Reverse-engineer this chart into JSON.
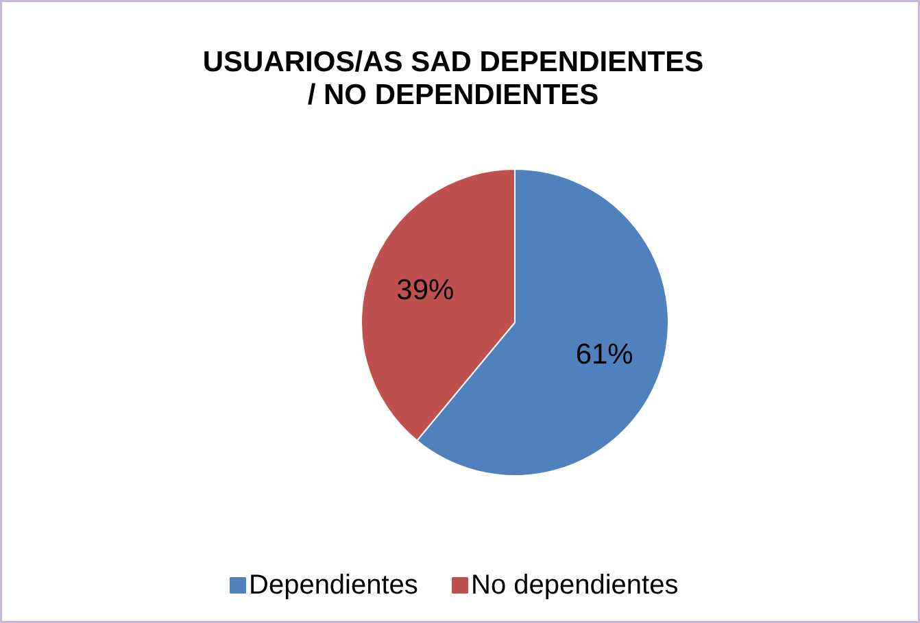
{
  "chart_data": {
    "type": "pie",
    "title": "USUARIOS/AS SAD DEPENDIENTES / NO DEPENDIENTES",
    "categories": [
      "Dependientes",
      "No dependientes"
    ],
    "values": [
      61,
      39
    ],
    "colors": [
      "#4f81bd",
      "#c0504d"
    ],
    "value_labels": [
      "61%",
      "39%"
    ],
    "legend": "bottom"
  }
}
